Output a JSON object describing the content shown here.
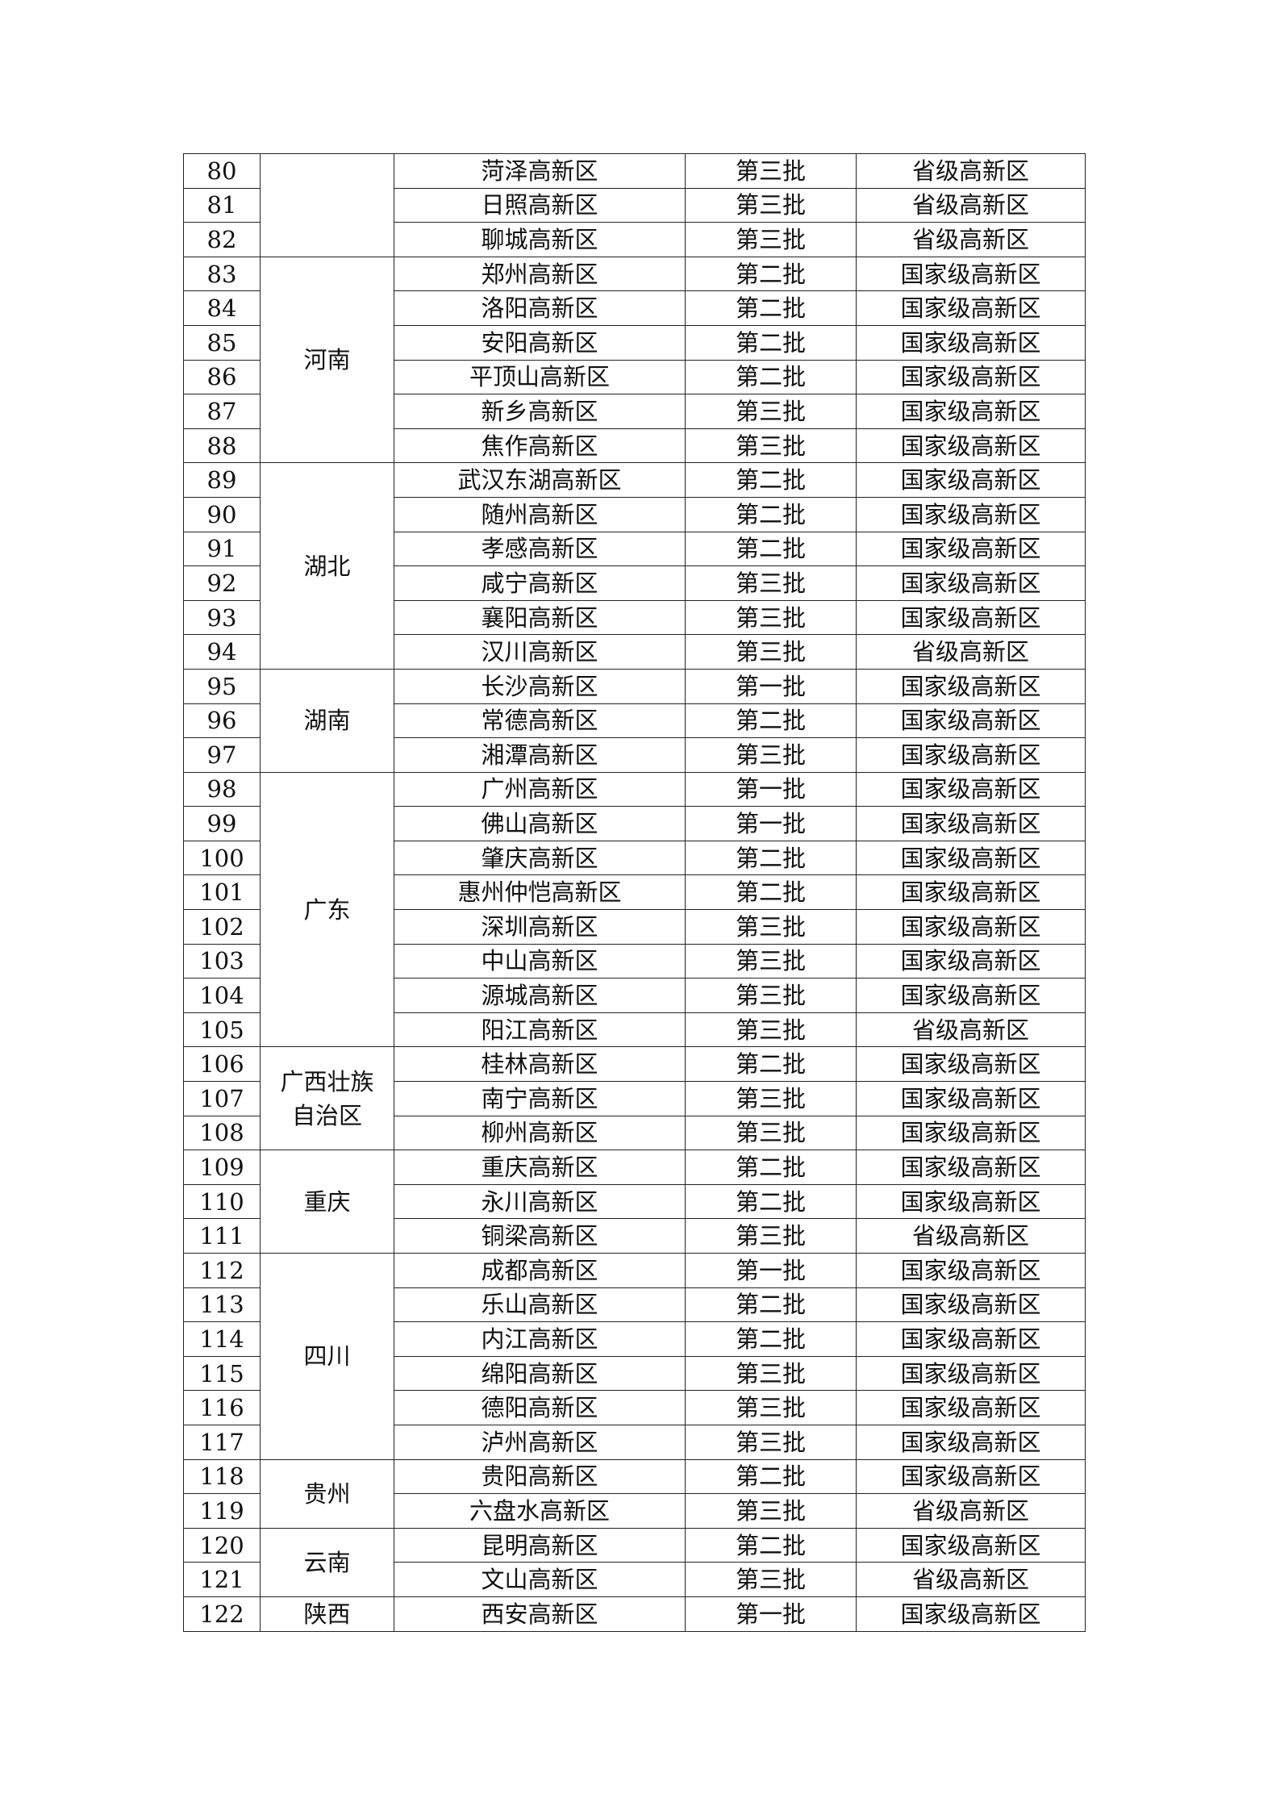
{
  "groups": [
    {
      "province": "",
      "rows": [
        [
          "80",
          "菏泽高新区",
          "第三批",
          "省级高新区"
        ],
        [
          "81",
          "日照高新区",
          "第三批",
          "省级高新区"
        ],
        [
          "82",
          "聊城高新区",
          "第三批",
          "省级高新区"
        ]
      ]
    },
    {
      "province": "河南",
      "rows": [
        [
          "83",
          "郑州高新区",
          "第二批",
          "国家级高新区"
        ],
        [
          "84",
          "洛阳高新区",
          "第二批",
          "国家级高新区"
        ],
        [
          "85",
          "安阳高新区",
          "第二批",
          "国家级高新区"
        ],
        [
          "86",
          "平顶山高新区",
          "第二批",
          "国家级高新区"
        ],
        [
          "87",
          "新乡高新区",
          "第三批",
          "国家级高新区"
        ],
        [
          "88",
          "焦作高新区",
          "第三批",
          "国家级高新区"
        ]
      ]
    },
    {
      "province": "湖北",
      "rows": [
        [
          "89",
          "武汉东湖高新区",
          "第二批",
          "国家级高新区"
        ],
        [
          "90",
          "随州高新区",
          "第二批",
          "国家级高新区"
        ],
        [
          "91",
          "孝感高新区",
          "第二批",
          "国家级高新区"
        ],
        [
          "92",
          "咸宁高新区",
          "第三批",
          "国家级高新区"
        ],
        [
          "93",
          "襄阳高新区",
          "第三批",
          "国家级高新区"
        ],
        [
          "94",
          "汉川高新区",
          "第三批",
          "省级高新区"
        ]
      ]
    },
    {
      "province": "湖南",
      "rows": [
        [
          "95",
          "长沙高新区",
          "第一批",
          "国家级高新区"
        ],
        [
          "96",
          "常德高新区",
          "第二批",
          "国家级高新区"
        ],
        [
          "97",
          "湘潭高新区",
          "第三批",
          "国家级高新区"
        ]
      ]
    },
    {
      "province": "广东",
      "rows": [
        [
          "98",
          "广州高新区",
          "第一批",
          "国家级高新区"
        ],
        [
          "99",
          "佛山高新区",
          "第一批",
          "国家级高新区"
        ],
        [
          "100",
          "肇庆高新区",
          "第二批",
          "国家级高新区"
        ],
        [
          "101",
          "惠州仲恺高新区",
          "第二批",
          "国家级高新区"
        ],
        [
          "102",
          "深圳高新区",
          "第三批",
          "国家级高新区"
        ],
        [
          "103",
          "中山高新区",
          "第三批",
          "国家级高新区"
        ],
        [
          "104",
          "源城高新区",
          "第三批",
          "国家级高新区"
        ],
        [
          "105",
          "阳江高新区",
          "第三批",
          "省级高新区"
        ]
      ]
    },
    {
      "province": "广西壮族自治区",
      "rows": [
        [
          "106",
          "桂林高新区",
          "第二批",
          "国家级高新区"
        ],
        [
          "107",
          "南宁高新区",
          "第三批",
          "国家级高新区"
        ],
        [
          "108",
          "柳州高新区",
          "第三批",
          "国家级高新区"
        ]
      ]
    },
    {
      "province": "重庆",
      "rows": [
        [
          "109",
          "重庆高新区",
          "第二批",
          "国家级高新区"
        ],
        [
          "110",
          "永川高新区",
          "第二批",
          "国家级高新区"
        ],
        [
          "111",
          "铜梁高新区",
          "第三批",
          "省级高新区"
        ]
      ]
    },
    {
      "province": "四川",
      "rows": [
        [
          "112",
          "成都高新区",
          "第一批",
          "国家级高新区"
        ],
        [
          "113",
          "乐山高新区",
          "第二批",
          "国家级高新区"
        ],
        [
          "114",
          "内江高新区",
          "第二批",
          "国家级高新区"
        ],
        [
          "115",
          "绵阳高新区",
          "第三批",
          "国家级高新区"
        ],
        [
          "116",
          "德阳高新区",
          "第三批",
          "国家级高新区"
        ],
        [
          "117",
          "泸州高新区",
          "第三批",
          "国家级高新区"
        ]
      ]
    },
    {
      "province": "贵州",
      "rows": [
        [
          "118",
          "贵阳高新区",
          "第二批",
          "国家级高新区"
        ],
        [
          "119",
          "六盘水高新区",
          "第三批",
          "省级高新区"
        ]
      ]
    },
    {
      "province": "云南",
      "rows": [
        [
          "120",
          "昆明高新区",
          "第二批",
          "国家级高新区"
        ],
        [
          "121",
          "文山高新区",
          "第三批",
          "省级高新区"
        ]
      ]
    },
    {
      "province": "陕西",
      "rows": [
        [
          "122",
          "西安高新区",
          "第一批",
          "国家级高新区"
        ]
      ]
    }
  ]
}
